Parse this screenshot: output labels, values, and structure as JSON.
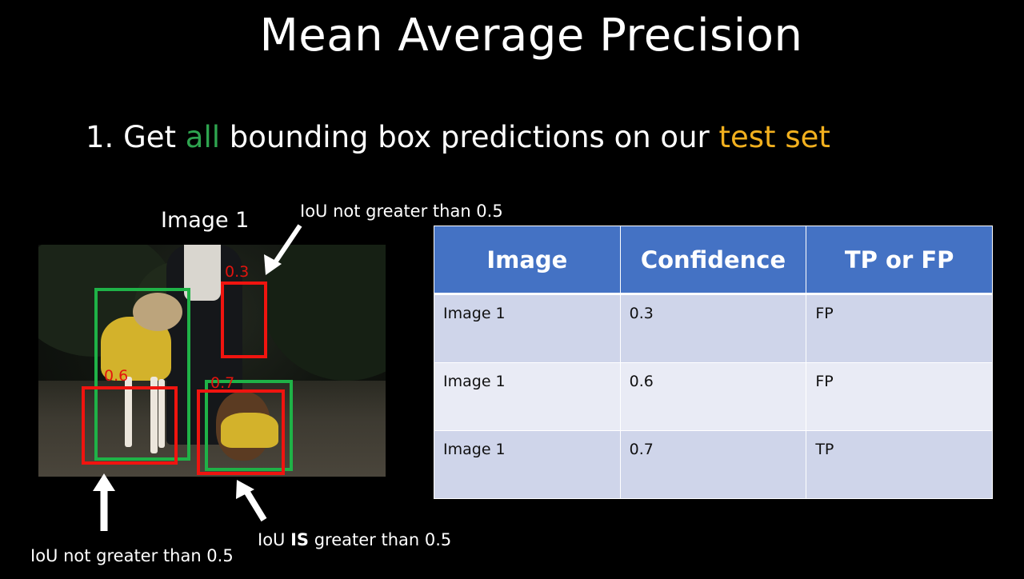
{
  "slide": {
    "title": "Mean Average Precision",
    "bullet": {
      "prefix": "1. Get ",
      "highlight1": "all",
      "middle": " bounding box predictions on our ",
      "highlight2": "test set"
    },
    "image_label": "Image 1"
  },
  "annotations": {
    "top": "IoU not greater than 0.5",
    "bottom_left": "IoU not greater than 0.5",
    "bottom_right_prefix": "IoU ",
    "bottom_right_bold": "IS",
    "bottom_right_suffix": " greater than 0.5"
  },
  "predictions": [
    {
      "confidence": "0.3",
      "box_color": "red"
    },
    {
      "confidence": "0.6",
      "box_color": "red"
    },
    {
      "confidence": "0.7",
      "box_color": "red"
    }
  ],
  "table": {
    "headers": [
      "Image",
      "Confidence",
      "TP or FP"
    ],
    "rows": [
      [
        "Image 1",
        "0.3",
        "FP"
      ],
      [
        "Image 1",
        "0.6",
        "FP"
      ],
      [
        "Image 1",
        "0.7",
        "TP"
      ]
    ]
  },
  "colors": {
    "ground_truth_box": "#1fb247",
    "prediction_box": "#f0140f",
    "highlight_green": "#2ea44f",
    "highlight_orange": "#f2b01e",
    "table_header": "#4472c4",
    "table_row_odd": "#cfd5ea",
    "table_row_even": "#e9ebf5"
  }
}
